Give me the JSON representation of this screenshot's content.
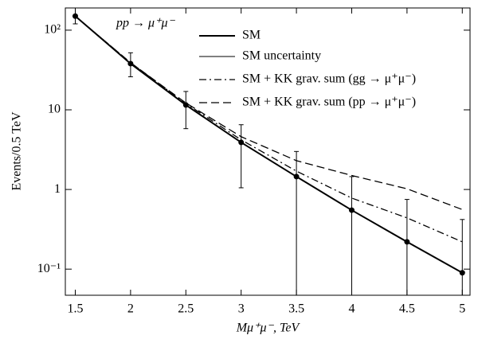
{
  "chart_data": {
    "type": "line",
    "y_log": true,
    "x_label": "Mμ⁺μ⁻, TeV",
    "y_label": "Events/0.5 TeV",
    "annotation": "pp → μ⁺μ⁻",
    "uncertainty_label": "SM uncertainty",
    "x": [
      1.5,
      2,
      2.5,
      3,
      3.5,
      4,
      4.5,
      5
    ],
    "xlim": [
      1.41,
      5.07
    ],
    "xticks": [
      1.5,
      2,
      2.5,
      3,
      3.5,
      4,
      4.5,
      5
    ],
    "ylim": [
      0.047,
      190
    ],
    "yticks": [
      {
        "value": 0.1,
        "label": "10⁻¹"
      },
      1,
      10,
      {
        "value": 100,
        "label": "10²"
      }
    ],
    "series": [
      {
        "name": "SM",
        "color": "#000000",
        "style": "solid",
        "markers": true,
        "values": [
          150,
          38,
          11.5,
          3.9,
          1.45,
          0.55,
          0.22,
          0.09
        ],
        "error_low": [
          120,
          26,
          5.8,
          1.05,
          0,
          0,
          0,
          0
        ],
        "error_high": [
          190,
          52,
          17,
          6.5,
          3.0,
          1.45,
          0.75,
          0.42
        ]
      },
      {
        "name": "SM + KK grav. sum (gg → μ⁺μ⁻)",
        "color": "#000000",
        "style": "dashdot",
        "markers": false,
        "values": [
          150,
          39,
          12,
          4.2,
          1.7,
          0.78,
          0.44,
          0.22
        ]
      },
      {
        "name": "SM + KK grav. sum (pp → μ⁺μ⁻)",
        "color": "#000000",
        "style": "dashed",
        "markers": false,
        "values": [
          150,
          39,
          12.2,
          4.6,
          2.3,
          1.5,
          1.02,
          0.56
        ]
      }
    ]
  }
}
